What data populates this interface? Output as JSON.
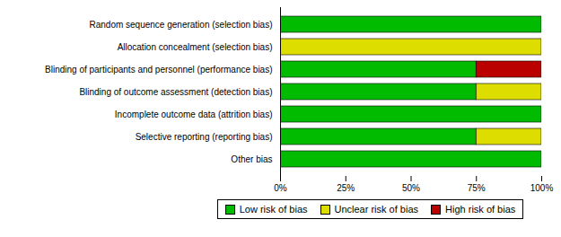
{
  "chart_data": {
    "type": "bar",
    "orientation": "horizontal",
    "stacked": true,
    "categories": [
      "Other bias",
      "Selective reporting (reporting bias)",
      "Incomplete outcome data (attrition bias)",
      "Blinding of outcome assessment (detection bias)",
      "Blinding of participants and personnel (performance bias)",
      "Allocation concealment (selection bias)",
      "Random sequence generation (selection bias)"
    ],
    "series": [
      {
        "name": "Low risk of bias",
        "color": "#00bb00",
        "values": [
          100,
          75,
          100,
          75,
          75,
          0,
          100
        ]
      },
      {
        "name": "Unclear risk of bias",
        "color": "#dddd00",
        "values": [
          0,
          25,
          0,
          25,
          0,
          100,
          0
        ]
      },
      {
        "name": "High risk of bias",
        "color": "#bb0000",
        "values": [
          0,
          0,
          0,
          0,
          25,
          0,
          0
        ]
      }
    ],
    "xlim": [
      0,
      100
    ],
    "xticks": [
      {
        "value": 0,
        "label": "0%"
      },
      {
        "value": 25,
        "label": "25%"
      },
      {
        "value": 50,
        "label": "50%"
      },
      {
        "value": 75,
        "label": "75%"
      },
      {
        "value": 100,
        "label": "100%"
      }
    ],
    "grid": false,
    "legend": "bottom"
  }
}
